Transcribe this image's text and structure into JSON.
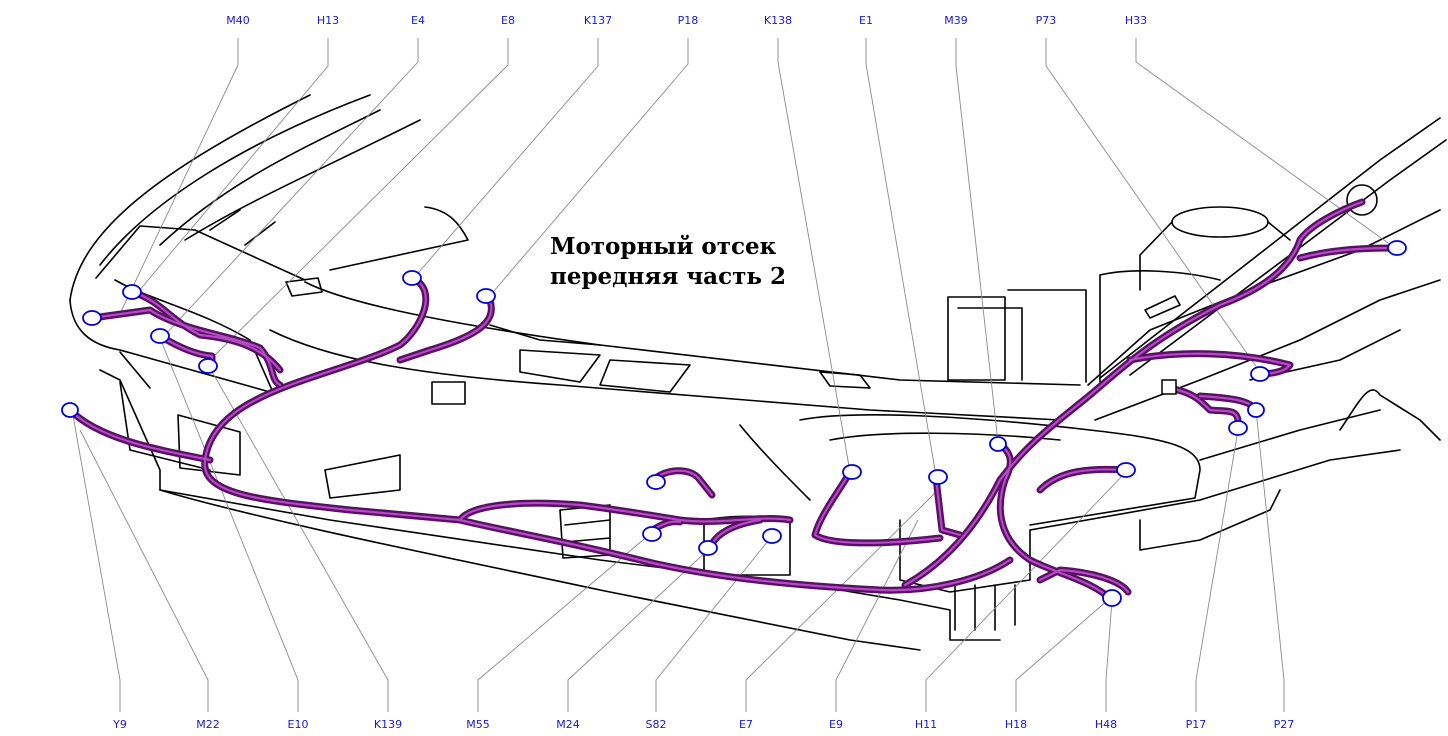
{
  "title": {
    "line1": "Моторный отсек",
    "line2": "передняя часть 2"
  },
  "colors": {
    "harness": "#5a0f66",
    "connector": "#0000d8",
    "label": "#1a1acc"
  },
  "labels_top": [
    "M40",
    "H13",
    "E4",
    "E8",
    "K137",
    "P18",
    "K138",
    "E1",
    "M39",
    "P73",
    "H33"
  ],
  "labels_bottom": [
    "Y9",
    "M22",
    "E10",
    "K139",
    "M55",
    "M24",
    "S82",
    "E7",
    "E9",
    "H11",
    "H18",
    "H48",
    "P17",
    "P27"
  ]
}
